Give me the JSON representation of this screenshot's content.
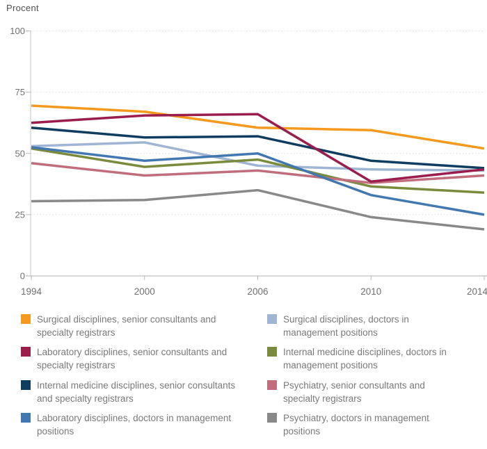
{
  "chart_data": {
    "type": "line",
    "title": "",
    "ylabel": "Procent",
    "xlabel": "",
    "x_categories": [
      "1994",
      "2000",
      "2006",
      "2010",
      "2014"
    ],
    "x_spacing": "equal",
    "ylim": [
      0,
      100
    ],
    "yticks": [
      0,
      25,
      50,
      75,
      100
    ],
    "grid": "horizontal dashed gridlines at 25/50/75/100",
    "legend_position": "bottom, two columns",
    "series": [
      {
        "id": "surgical-senior",
        "name": "Surgical disciplines, senior consultants and specialty registrars",
        "color": "#F59A1E",
        "values": [
          69.5,
          67,
          60.5,
          59.5,
          52
        ]
      },
      {
        "id": "laboratory-senior",
        "name": "Laboratory disciplines, senior consultants and specialty registrars",
        "color": "#9A1D4D",
        "values": [
          62.5,
          65.5,
          66,
          38.5,
          43.5
        ]
      },
      {
        "id": "internal-senior",
        "name": "Internal medicine disciplines, senior consultants and specialty registrars",
        "color": "#0F3D5F",
        "values": [
          60.5,
          56.5,
          57,
          47,
          44
        ]
      },
      {
        "id": "laboratory-mgmt",
        "name": "Laboratory disciplines, doctors in management positions",
        "color": "#4278B0",
        "values": [
          52.5,
          47,
          50,
          33,
          25
        ]
      },
      {
        "id": "surgical-mgmt",
        "name": "Surgical disciplines, doctors in management positions",
        "color": "#9FB5D3",
        "values": [
          53,
          54.5,
          45,
          43.5,
          43
        ]
      },
      {
        "id": "internal-mgmt",
        "name": "Internal medicine disciplines, doctors in management positions",
        "color": "#7B8B3D",
        "values": [
          52,
          44.5,
          47.5,
          36.5,
          34
        ]
      },
      {
        "id": "psychiatry-senior",
        "name": "Psychiatry, senior consultants and specialty registrars",
        "color": "#C06E7B",
        "values": [
          46,
          41,
          43,
          38,
          41
        ]
      },
      {
        "id": "psychiatry-mgmt",
        "name": "Psychiatry, doctors in management positions",
        "color": "#898989",
        "values": [
          30.5,
          31,
          35,
          24,
          19
        ]
      }
    ],
    "draw_order": [
      4,
      7,
      5,
      6,
      3,
      2,
      0,
      1
    ]
  },
  "legend": {
    "columns": [
      [
        0,
        1,
        2,
        3
      ],
      [
        4,
        5,
        6,
        7
      ]
    ]
  },
  "colors": {
    "axis_line": "#ADADAD",
    "left_axis_line": "#C4C4C4",
    "gridline": "#DCDCDC",
    "tick": "#B9B9B9",
    "tick_label": "#707070",
    "legend_text": "#7A7A7A",
    "background": "#FFFFFF"
  }
}
